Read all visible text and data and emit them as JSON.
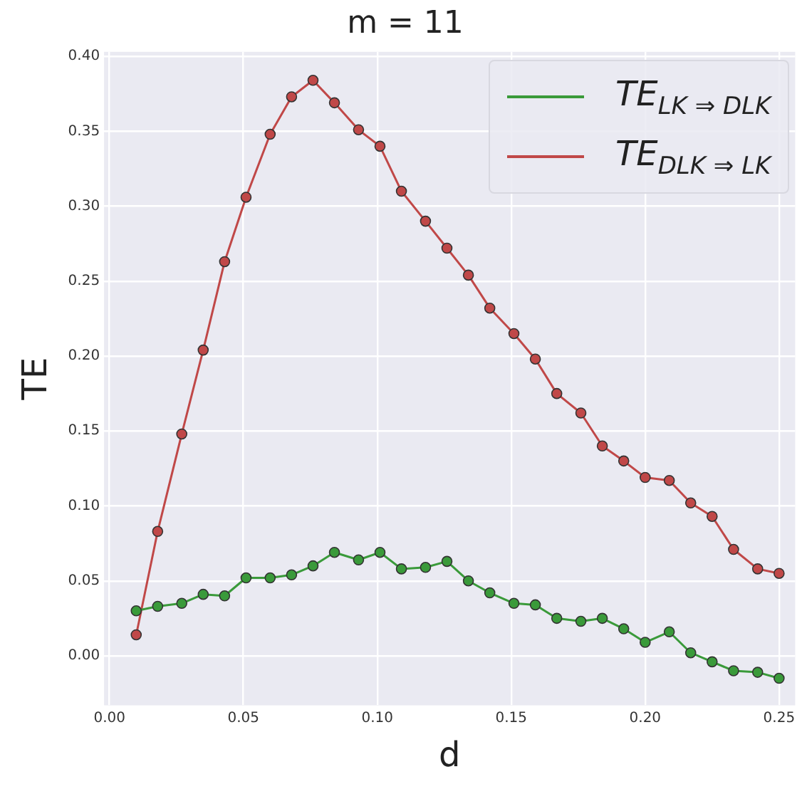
{
  "chart_data": {
    "type": "line",
    "title": "m = 11",
    "xlabel": "d",
    "ylabel": "TE",
    "x": [
      0.01,
      0.018,
      0.027,
      0.035,
      0.043,
      0.051,
      0.06,
      0.068,
      0.076,
      0.084,
      0.093,
      0.101,
      0.109,
      0.118,
      0.126,
      0.134,
      0.142,
      0.151,
      0.159,
      0.167,
      0.176,
      0.184,
      0.192,
      0.2,
      0.209,
      0.217,
      0.225,
      0.233,
      0.242,
      0.25
    ],
    "series": [
      {
        "name": "TE$_{LK ⇒ DLK}$",
        "color": "#3a9a3a",
        "values": [
          0.03,
          0.033,
          0.035,
          0.041,
          0.04,
          0.052,
          0.052,
          0.054,
          0.06,
          0.069,
          0.064,
          0.069,
          0.058,
          0.059,
          0.063,
          0.05,
          0.042,
          0.035,
          0.034,
          0.025,
          0.023,
          0.025,
          0.018,
          0.009,
          0.016,
          0.002,
          -0.004,
          -0.01,
          -0.011,
          -0.015
        ]
      },
      {
        "name": "TE$_{DLK ⇒ LK}$",
        "color": "#c04848",
        "values": [
          0.014,
          0.083,
          0.148,
          0.204,
          0.263,
          0.306,
          0.348,
          0.373,
          0.384,
          0.369,
          0.351,
          0.34,
          0.31,
          0.29,
          0.272,
          0.254,
          0.232,
          0.215,
          0.198,
          0.175,
          0.162,
          0.14,
          0.13,
          0.119,
          0.117,
          0.102,
          0.093,
          0.071,
          0.058,
          0.055
        ]
      }
    ],
    "xlim": [
      -0.002,
      0.256
    ],
    "ylim": [
      -0.033,
      0.403
    ],
    "xticks": [
      {
        "value": 0,
        "label": "0.00"
      },
      0.05,
      {
        "value": 0.1,
        "label": "0.10"
      },
      0.15,
      {
        "value": 0.2,
        "label": "0.20"
      },
      0.25
    ],
    "yticks": [
      {
        "value": 0,
        "label": "0.00"
      },
      0.05,
      {
        "value": 0.1,
        "label": "0.10"
      },
      0.15,
      {
        "value": 0.2,
        "label": "0.20"
      },
      0.25,
      {
        "value": 0.3,
        "label": "0.30"
      },
      0.35,
      {
        "value": 0.4,
        "label": "0.40"
      }
    ],
    "grid": true,
    "legend": "top right",
    "marker": "circle",
    "line_style": "solid"
  }
}
